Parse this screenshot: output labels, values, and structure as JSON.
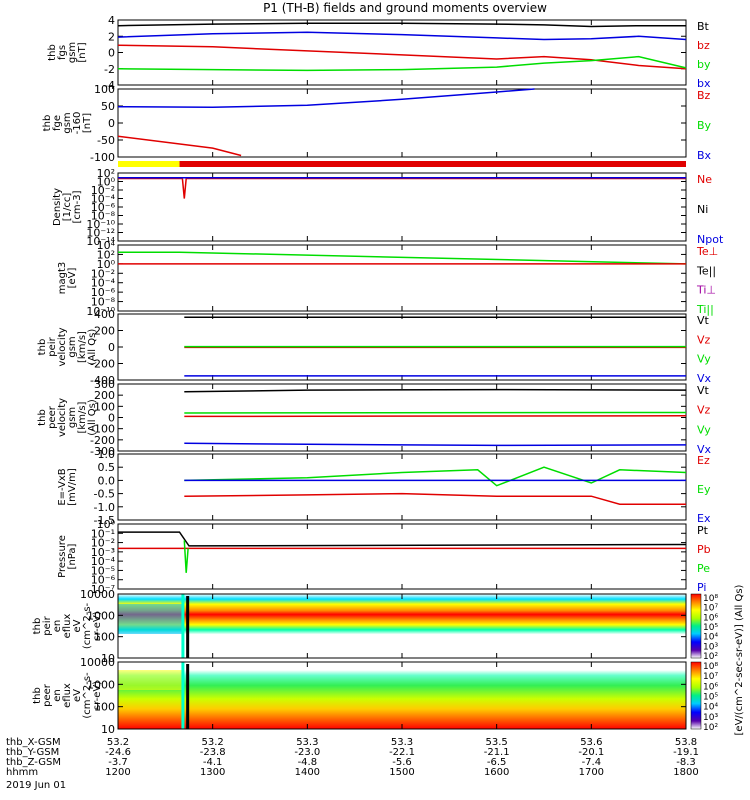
{
  "title": "P1 (TH-B) fields and ground moments overview",
  "date_label": "2019 Jun 01",
  "colors": {
    "black": "#000000",
    "red": "#e00000",
    "green": "#00dd00",
    "blue": "#0000e0",
    "yellow": "#ffff00",
    "purple": "#a000a0"
  },
  "footer": {
    "rows": [
      {
        "name": "thb_X-GSM",
        "values": [
          "53.2",
          "53.2",
          "53.3",
          "53.3",
          "53.5",
          "53.6",
          "53.8"
        ]
      },
      {
        "name": "thb_Y-GSM",
        "values": [
          "-24.6",
          "-23.8",
          "-23.0",
          "-22.1",
          "-21.1",
          "-20.1",
          "-19.1"
        ]
      },
      {
        "name": "thb_Z-GSM",
        "values": [
          "-3.7",
          "-4.1",
          "-4.8",
          "-5.6",
          "-6.5",
          "-7.4",
          "-8.3"
        ]
      },
      {
        "name": "hhmm",
        "values": [
          "1200",
          "1300",
          "1400",
          "1500",
          "1600",
          "1700",
          "1800"
        ]
      }
    ]
  },
  "colorbar": {
    "ticks": [
      "10⁸",
      "10⁷",
      "10⁶",
      "10⁵",
      "10⁴",
      "10³",
      "10²"
    ],
    "label": "[eV/(cm^2-sec-sr-eV)] (All Qs)"
  },
  "chart_data": [
    {
      "type": "line",
      "panel": "fgs_gsm",
      "ylabel_lines": [
        "thb",
        "fgs",
        "gsm",
        "[nT]"
      ],
      "ylim": [
        -4,
        4
      ],
      "yticks": [
        "4",
        "2",
        "0",
        "-2",
        "-4"
      ],
      "legend": [
        {
          "label": "Bt",
          "color": "black"
        },
        {
          "label": "bz",
          "color": "red"
        },
        {
          "label": "by",
          "color": "green"
        },
        {
          "label": "bx",
          "color": "blue"
        }
      ],
      "series": [
        {
          "name": "Bt",
          "color": "black",
          "x": [
            1200,
            1300,
            1400,
            1500,
            1600,
            1650,
            1700,
            1750,
            1800
          ],
          "y": [
            3.3,
            3.5,
            3.6,
            3.6,
            3.5,
            3.4,
            3.2,
            3.3,
            3.3
          ]
        },
        {
          "name": "bz",
          "color": "red",
          "x": [
            1200,
            1300,
            1400,
            1500,
            1600,
            1650,
            1700,
            1750,
            1800
          ],
          "y": [
            0.9,
            0.7,
            0.2,
            -0.3,
            -0.8,
            -0.5,
            -0.9,
            -1.6,
            -2.0
          ]
        },
        {
          "name": "by",
          "color": "green",
          "x": [
            1200,
            1300,
            1400,
            1500,
            1600,
            1650,
            1700,
            1750,
            1800
          ],
          "y": [
            -2.0,
            -2.1,
            -2.2,
            -2.1,
            -1.8,
            -1.3,
            -1.0,
            -0.5,
            -1.9
          ]
        },
        {
          "name": "bx",
          "color": "blue",
          "x": [
            1200,
            1300,
            1400,
            1500,
            1600,
            1650,
            1700,
            1750,
            1800
          ],
          "y": [
            1.9,
            2.3,
            2.5,
            2.2,
            1.8,
            1.6,
            1.7,
            2.0,
            1.6
          ]
        }
      ]
    },
    {
      "type": "line",
      "panel": "fge_sm",
      "ylabel_lines": [
        "thb",
        "fge",
        "gsm",
        "-160",
        "[nT]"
      ],
      "ylim": [
        -130,
        100
      ],
      "yticks": [
        "100",
        "50",
        "0",
        "-50",
        "-100"
      ],
      "legend": [
        {
          "label": "Bz",
          "color": "red"
        },
        {
          "label": "By",
          "color": "green"
        },
        {
          "label": "Bx",
          "color": "blue"
        }
      ],
      "series": [
        {
          "name": "Bx",
          "color": "blue",
          "x": [
            1200,
            1300,
            1400,
            1500,
            1600,
            1640
          ],
          "y": [
            40,
            38,
            45,
            65,
            90,
            100
          ]
        },
        {
          "name": "Bz",
          "color": "red",
          "x": [
            1200,
            1300,
            1330
          ],
          "y": [
            -60,
            -100,
            -125
          ]
        }
      ]
    },
    {
      "type": "bar",
      "panel": "mode_bar",
      "segments": [
        {
          "from": 1200,
          "to": 1265,
          "color": "yellow"
        },
        {
          "from": 1265,
          "to": 1800,
          "color": "red"
        }
      ]
    },
    {
      "type": "line",
      "panel": "density",
      "ylabel_lines": [
        "Density",
        "[1/cc]",
        "[cm-3]"
      ],
      "scale": "log",
      "ylim": [
        1e-14,
        100
      ],
      "yticks": [
        "10²",
        "10⁰",
        "10⁻²",
        "10⁻⁴",
        "10⁻⁶",
        "10⁻⁸",
        "10⁻¹⁰",
        "10⁻¹²",
        "10⁻¹⁴"
      ],
      "legend": [
        {
          "label": "Ne",
          "color": "red"
        },
        {
          "label": "Ni",
          "color": "black"
        },
        {
          "label": "Npot",
          "color": "blue"
        }
      ],
      "series": [
        {
          "name": "Ne",
          "color": "red",
          "x": [
            1200,
            1268,
            1270,
            1272,
            1800
          ],
          "y": [
            5,
            5,
            0.0001,
            5,
            5
          ]
        },
        {
          "name": "Npot",
          "color": "blue",
          "x": [
            1200,
            1800
          ],
          "y": [
            8,
            8
          ]
        }
      ]
    },
    {
      "type": "line",
      "panel": "temperature",
      "ylabel_lines": [
        "magt3",
        "[eV]"
      ],
      "scale": "log",
      "ylim": [
        1e-10,
        10000
      ],
      "yticks": [
        "10⁴",
        "10²",
        "10⁰",
        "10⁻²",
        "10⁻⁴",
        "10⁻⁶",
        "10⁻⁸",
        "10⁻¹⁰"
      ],
      "legend": [
        {
          "label": "Te⊥",
          "color": "red"
        },
        {
          "label": "Te||",
          "color": "black"
        },
        {
          "label": "Ti⊥",
          "color": "purple"
        },
        {
          "label": "Ti||",
          "color": "green"
        }
      ],
      "series": [
        {
          "name": "Ti||",
          "color": "green",
          "x": [
            1200,
            1265,
            1800
          ],
          "y": [
            300,
            300,
            1
          ]
        },
        {
          "name": "Te⊥",
          "color": "red",
          "x": [
            1200,
            1800
          ],
          "y": [
            1,
            1
          ]
        }
      ]
    },
    {
      "type": "line",
      "panel": "peir_velocity",
      "ylabel_lines": [
        "thb",
        "peir",
        "velocity",
        "gsm",
        "[km/s]",
        "(All Qs)"
      ],
      "ylim": [
        -400,
        400
      ],
      "yticks": [
        "400",
        "200",
        "0",
        "-200",
        "-400"
      ],
      "legend": [
        {
          "label": "Vt",
          "color": "black"
        },
        {
          "label": "Vz",
          "color": "red"
        },
        {
          "label": "Vy",
          "color": "green"
        },
        {
          "label": "Vx",
          "color": "blue"
        }
      ],
      "series": [
        {
          "name": "Vt",
          "color": "black",
          "x": [
            1270,
            1800
          ],
          "y": [
            360,
            360
          ]
        },
        {
          "name": "Vz",
          "color": "red",
          "x": [
            1270,
            1800
          ],
          "y": [
            -5,
            -5
          ]
        },
        {
          "name": "Vy",
          "color": "green",
          "x": [
            1270,
            1800
          ],
          "y": [
            5,
            5
          ]
        },
        {
          "name": "Vx",
          "color": "blue",
          "x": [
            1270,
            1800
          ],
          "y": [
            -350,
            -350
          ]
        }
      ]
    },
    {
      "type": "line",
      "panel": "peer_velocity",
      "ylabel_lines": [
        "thb",
        "peer",
        "velocity",
        "gsm",
        "[km/s]",
        "(All Qs)"
      ],
      "ylim": [
        -300,
        300
      ],
      "yticks": [
        "300",
        "200",
        "100",
        "0",
        "-100",
        "-200",
        "-300"
      ],
      "legend": [
        {
          "label": "Vt",
          "color": "black"
        },
        {
          "label": "Vz",
          "color": "red"
        },
        {
          "label": "Vy",
          "color": "green"
        },
        {
          "label": "Vx",
          "color": "blue"
        }
      ],
      "series": [
        {
          "name": "Vt",
          "color": "black",
          "x": [
            1270,
            1400,
            1600,
            1800
          ],
          "y": [
            230,
            245,
            250,
            245
          ]
        },
        {
          "name": "Vz",
          "color": "red",
          "x": [
            1270,
            1800
          ],
          "y": [
            10,
            15
          ]
        },
        {
          "name": "Vy",
          "color": "green",
          "x": [
            1270,
            1800
          ],
          "y": [
            40,
            45
          ]
        },
        {
          "name": "Vx",
          "color": "blue",
          "x": [
            1270,
            1400,
            1600,
            1800
          ],
          "y": [
            -230,
            -240,
            -250,
            -245
          ]
        }
      ]
    },
    {
      "type": "line",
      "panel": "efield",
      "ylabel_lines": [
        "E=-VxB",
        "[mV/m]"
      ],
      "ylim": [
        -1.5,
        1.0
      ],
      "yticks": [
        "1.0",
        "0.5",
        "0.0",
        "-0.5",
        "-1.0",
        "-1.5"
      ],
      "legend": [
        {
          "label": "Ez",
          "color": "red"
        },
        {
          "label": "Ey",
          "color": "green"
        },
        {
          "label": "Ex",
          "color": "blue"
        }
      ],
      "series": [
        {
          "name": "Ez",
          "color": "red",
          "x": [
            1270,
            1400,
            1500,
            1600,
            1700,
            1730,
            1800
          ],
          "y": [
            -0.6,
            -0.55,
            -0.5,
            -0.6,
            -0.6,
            -0.9,
            -0.9
          ]
        },
        {
          "name": "Ey",
          "color": "green",
          "x": [
            1270,
            1400,
            1500,
            1580,
            1600,
            1650,
            1700,
            1730,
            1800
          ],
          "y": [
            0.0,
            0.1,
            0.3,
            0.4,
            -0.2,
            0.5,
            -0.1,
            0.4,
            0.3
          ]
        },
        {
          "name": "Ex",
          "color": "blue",
          "x": [
            1270,
            1800
          ],
          "y": [
            0.0,
            0.0
          ]
        }
      ]
    },
    {
      "type": "line",
      "panel": "pressure",
      "ylabel_lines": [
        "Pressure",
        "[nPa]"
      ],
      "scale": "log",
      "ylim": [
        1e-07,
        10
      ],
      "yticks": [
        "10⁰",
        "10⁻¹",
        "10⁻²",
        "10⁻³",
        "10⁻⁴",
        "10⁻⁵",
        "10⁻⁶",
        "10⁻⁷"
      ],
      "legend": [
        {
          "label": "Pt",
          "color": "black"
        },
        {
          "label": "Pb",
          "color": "red"
        },
        {
          "label": "Pe",
          "color": "green"
        },
        {
          "label": "Pi",
          "color": "blue"
        }
      ],
      "series": [
        {
          "name": "Pt",
          "color": "black",
          "x": [
            1200,
            1265,
            1275,
            1800
          ],
          "y": [
            1,
            1,
            0.02,
            0.03
          ]
        },
        {
          "name": "Pb",
          "color": "red",
          "x": [
            1200,
            1800
          ],
          "y": [
            0.01,
            0.01
          ]
        },
        {
          "name": "Pe",
          "color": "green",
          "x": [
            1270,
            1272,
            1274
          ],
          "y": [
            0.1,
            1e-05,
            0.01
          ]
        }
      ]
    },
    {
      "type": "heatmap",
      "panel": "peir_spectrogram",
      "ylabel_lines": [
        "thb",
        "peir",
        "en",
        "eflux",
        "eV",
        "(cm^2-s-",
        "sr-eV)"
      ],
      "scale": "log",
      "ylim": [
        5,
        20000
      ],
      "yticks": [
        "10000",
        "1000",
        "100",
        "10"
      ]
    },
    {
      "type": "heatmap",
      "panel": "peer_spectrogram",
      "ylabel_lines": [
        "thb",
        "peer",
        "en",
        "eflux",
        "eV",
        "(cm^2-s-",
        "sr-eV)"
      ],
      "scale": "log",
      "ylim": [
        5,
        20000
      ],
      "yticks": [
        "10000",
        "1000",
        "100",
        "10"
      ]
    }
  ]
}
